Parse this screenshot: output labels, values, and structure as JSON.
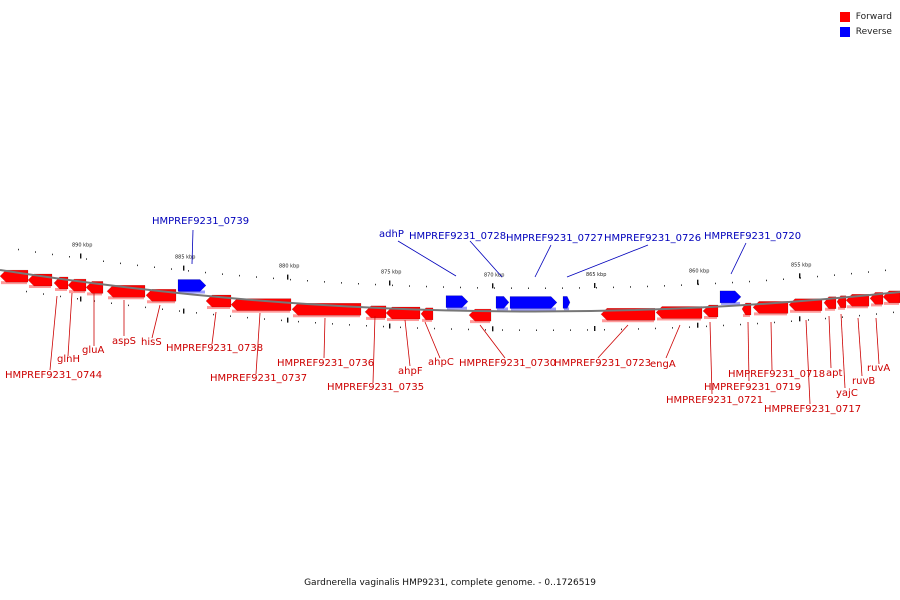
{
  "legend": {
    "items": [
      {
        "label": "Forward",
        "color": "#ff0000"
      },
      {
        "label": "Reverse",
        "color": "#0000ff"
      }
    ]
  },
  "caption": "Gardnerella vaginalis HMP9231, complete genome. - 0..1726519",
  "colors": {
    "forward": "#ff0000",
    "forward_shade": "#ff9a9a",
    "reverse": "#0000ff",
    "reverse_shade": "#9a9aff",
    "backbone": "#777777",
    "forward_label": "#cc0000",
    "reverse_label": "#0000bb"
  },
  "ruler": {
    "tick_labels": [
      "890 kbp",
      "885 kbp",
      "880 kbp",
      "875 kbp",
      "870 kbp",
      "865 kbp",
      "860 kbp",
      "855 kbp"
    ]
  },
  "genes": {
    "forward": [
      "HMPREF9231_0744",
      "glnH",
      "gluA",
      "aspS",
      "hisS",
      "HMPREF9231_0738",
      "HMPREF9231_0737",
      "HMPREF9231_0736",
      "HMPREF9231_0735",
      "ahpF",
      "ahpC",
      "HMPREF9231_0730",
      "HMPREF9231_0723",
      "engA",
      "HMPREF9231_0721",
      "HMPREF9231_0719",
      "HMPREF9231_0718",
      "HMPREF9231_0717",
      "apt",
      "yajC",
      "ruvB",
      "ruvA"
    ],
    "reverse": [
      "HMPREF9231_0739",
      "adhP",
      "HMPREF9231_0728",
      "HMPREF9231_0727",
      "HMPREF9231_0726",
      "HMPREF9231_0720"
    ]
  }
}
